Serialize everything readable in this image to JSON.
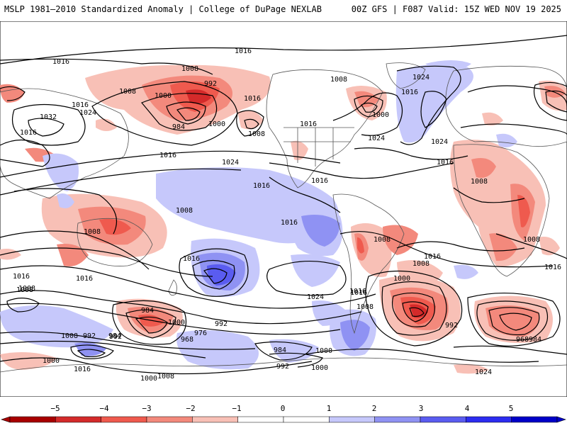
{
  "header": {
    "title_left": "MSLP 1981–2010 Standardized Anomaly | College of DuPage NEXLAB",
    "title_right": "00Z GFS | F087 Valid: 15Z WED NOV 19 2025"
  },
  "colors": {
    "neg5": "#a80000",
    "neg4": "#d42a2a",
    "neg3": "#ef5a4e",
    "neg2": "#f3897c",
    "neg1": "#f8c0b6",
    "pos1": "#c6c8fb",
    "pos2": "#8f92f3",
    "pos3": "#5a5cf0",
    "pos4": "#2c2cf0",
    "pos5": "#0000c8",
    "contour": "#000000",
    "coast": "#444444"
  },
  "colorbar": {
    "ticks": [
      "−5",
      "−4",
      "−3",
      "−2",
      "−1",
      "0",
      "1",
      "2",
      "3",
      "4",
      "5"
    ]
  },
  "isobar_labels": [
    "1016",
    "1016",
    "1008",
    "992",
    "1008",
    "1000",
    "1016",
    "1016",
    "1024",
    "984",
    "1008",
    "1032",
    "1016",
    "1000",
    "1016",
    "1024",
    "1008",
    "1016",
    "1024",
    "1024",
    "1000",
    "1024",
    "1016",
    "1008",
    "1016",
    "1016",
    "1008",
    "1016",
    "1008",
    "1016",
    "1016",
    "1008",
    "1016",
    "1016",
    "1008",
    "1008",
    "1016",
    "1008",
    "1016",
    "1024",
    "1016",
    "1000",
    "1008",
    "984",
    "1000",
    "976",
    "992",
    "968",
    "984",
    "992",
    "1008",
    "1000",
    "992",
    "984",
    "992",
    "1000",
    "1008",
    "1016",
    "1000",
    "992",
    "968",
    "984",
    "1000",
    "1016",
    "1008",
    "1024"
  ]
}
